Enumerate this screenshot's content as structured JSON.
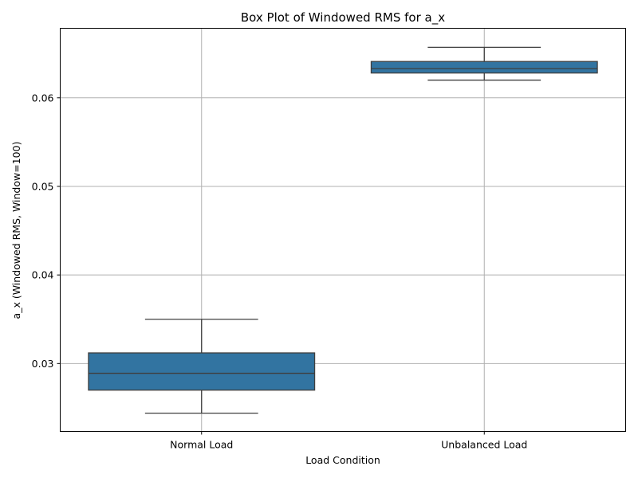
{
  "chart_data": {
    "type": "box",
    "title": "Box Plot of Windowed RMS for a_x",
    "xlabel": "Load Condition",
    "ylabel": "a_x (Windowed RMS, Window=100)",
    "categories": [
      "Normal Load",
      "Unbalanced Load"
    ],
    "boxes": [
      {
        "category": "Normal Load",
        "whisker_low": 0.0244,
        "q1": 0.027,
        "median": 0.0289,
        "q3": 0.0312,
        "whisker_high": 0.035
      },
      {
        "category": "Unbalanced Load",
        "whisker_low": 0.062,
        "q1": 0.0628,
        "median": 0.0633,
        "q3": 0.0641,
        "whisker_high": 0.0657
      }
    ],
    "yticks": [
      0.03,
      0.04,
      0.05,
      0.06
    ],
    "ytick_labels": [
      "0.03",
      "0.04",
      "0.05",
      "0.06"
    ],
    "ylim": [
      0.02234,
      0.06785
    ],
    "grid": true,
    "box_color": "#3274a1",
    "line_color": "#3f3f3f",
    "grid_color": "#b0b0b0"
  }
}
